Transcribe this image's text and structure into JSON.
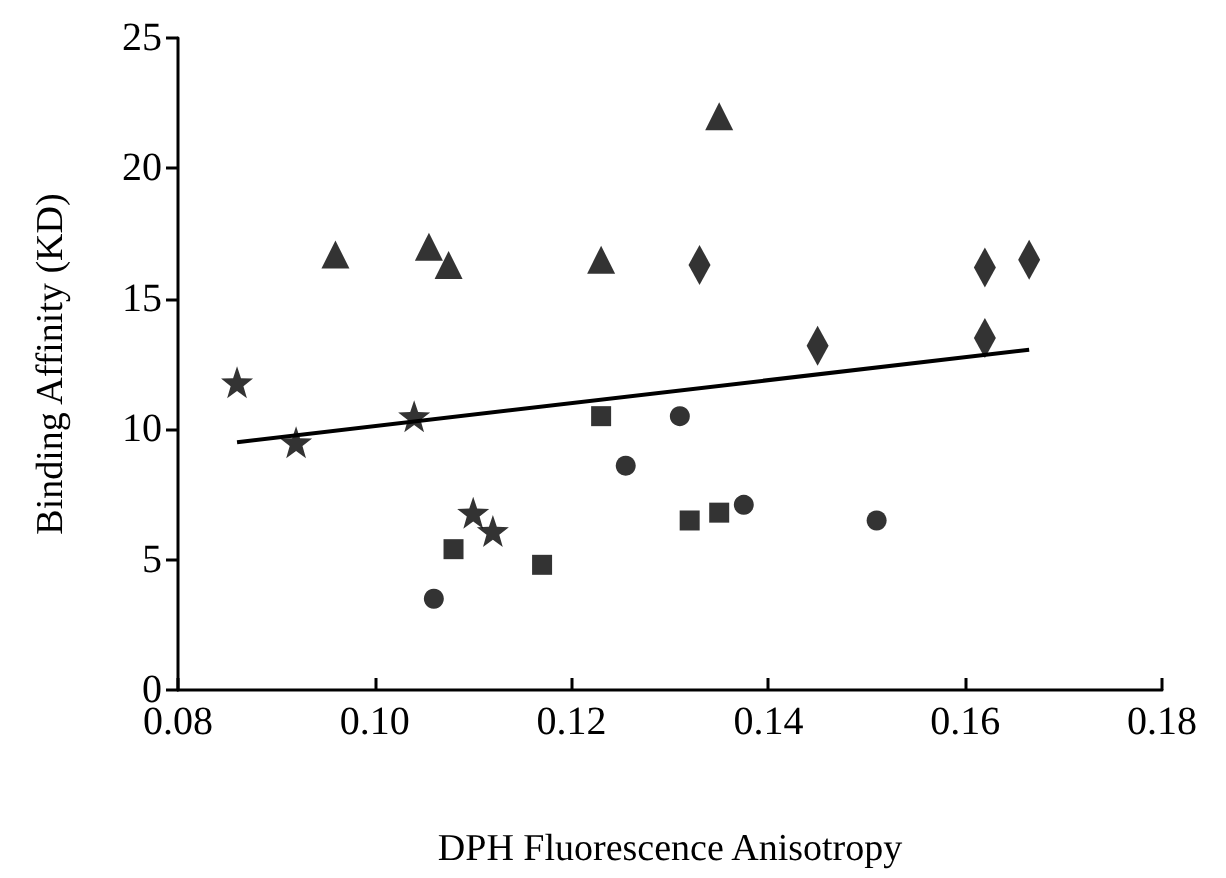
{
  "chart_data": {
    "type": "scatter",
    "xlabel": "DPH Fluorescence Anisotropy",
    "ylabel": "Binding Affinity (KD)",
    "xlim": [
      0.08,
      0.18
    ],
    "xticks": [
      {
        "value": 0.08,
        "label": "0.08"
      },
      {
        "value": 0.1,
        "label": "0.10"
      },
      {
        "value": 0.12,
        "label": "0.12"
      },
      {
        "value": 0.14,
        "label": "0.14"
      },
      {
        "value": 0.16,
        "label": "0.16"
      },
      {
        "value": 0.18,
        "label": "0.18"
      }
    ],
    "ylim": [
      0,
      25
    ],
    "yticks": [
      0,
      5,
      10,
      15,
      20,
      25
    ],
    "grid": false,
    "series": [
      {
        "marker": "star",
        "color": "#000000",
        "x": [
          0.086,
          0.092,
          0.104,
          0.11,
          0.112
        ],
        "values": [
          11.8,
          9.5,
          10.5,
          6.8,
          6.1
        ]
      },
      {
        "marker": "triangle",
        "color": "#000000",
        "x": [
          0.096,
          0.1055,
          0.1075,
          0.123,
          0.135
        ],
        "values": [
          16.7,
          17.0,
          16.3,
          16.5,
          22.0
        ]
      },
      {
        "marker": "square",
        "color": "#000000",
        "x": [
          0.108,
          0.117,
          0.123,
          0.132,
          0.135
        ],
        "values": [
          5.4,
          4.8,
          10.5,
          6.5,
          6.8
        ]
      },
      {
        "marker": "circle",
        "color": "#000000",
        "x": [
          0.106,
          0.1255,
          0.131,
          0.1375,
          0.151
        ],
        "values": [
          3.5,
          8.6,
          10.5,
          7.1,
          6.5
        ]
      },
      {
        "marker": "diamond",
        "color": "#000000",
        "x": [
          0.133,
          0.145,
          0.162,
          0.162,
          0.1665
        ],
        "values": [
          16.3,
          13.2,
          16.2,
          13.5,
          16.5
        ]
      },
      {
        "type": "line",
        "marker": "none",
        "line_style": "solid",
        "color": "#000000",
        "x": [
          0.086,
          0.1665
        ],
        "values": [
          9.5,
          13.05
        ]
      }
    ]
  }
}
